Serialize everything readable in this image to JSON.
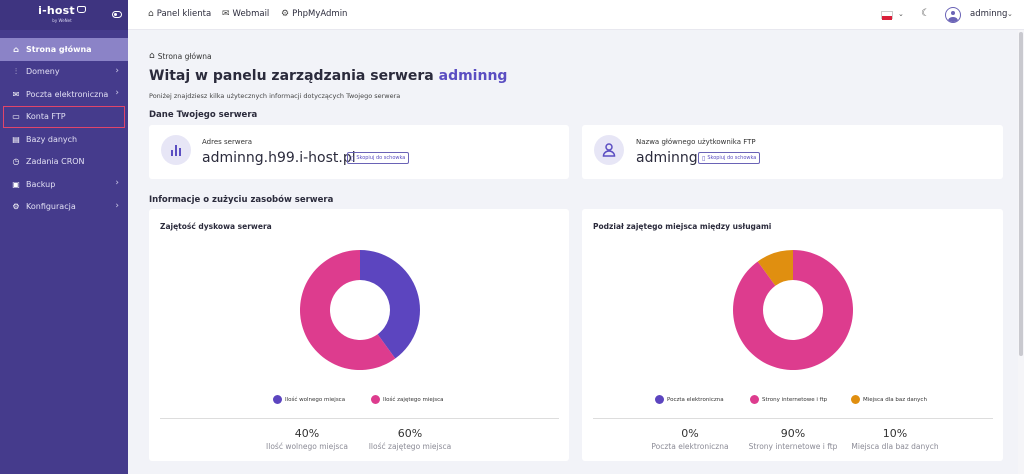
{
  "brand": {
    "name": "i-host",
    "tagline": "by WeNet"
  },
  "sidebar": {
    "items": [
      {
        "label": "Strona główna",
        "icon": "home-icon"
      },
      {
        "label": "Domeny",
        "icon": "chart-icon"
      },
      {
        "label": "Poczta elektroniczna",
        "icon": "mail-icon"
      },
      {
        "label": "Konta FTP",
        "icon": "ftp-icon"
      },
      {
        "label": "Bazy danych",
        "icon": "database-icon"
      },
      {
        "label": "Zadania CRON",
        "icon": "clock-icon"
      },
      {
        "label": "Backup",
        "icon": "backup-icon"
      },
      {
        "label": "Konfiguracja",
        "icon": "gear-icon"
      }
    ]
  },
  "topbar": {
    "links": [
      {
        "label": "Panel klienta",
        "icon": "home-icon"
      },
      {
        "label": "Webmail",
        "icon": "mail-icon"
      },
      {
        "label": "PhpMyAdmin",
        "icon": "gear-icon"
      }
    ],
    "language": "PL",
    "user": "adminng"
  },
  "main": {
    "breadcrumb": "Strona główna",
    "title_prefix": "Witaj w panelu zarządzania serwera",
    "title_user": "adminng",
    "subtitle": "Poniżej znajdziesz kilka użytecznych informacji dotyczących Twojego serwera",
    "server_section": "Dane Twojego serwera",
    "server_address_label": "Adres serwera",
    "server_address": "adminng.h99.i-host.pl",
    "ftp_user_label": "Nazwa głównego użytkownika FTP",
    "ftp_user": "adminng",
    "copy_label": "Skopiuj do schowka",
    "usage_section": "Informacje o zużyciu zasobów serwera"
  },
  "chart_data": [
    {
      "type": "pie",
      "title": "Zajętość dyskowa serwera",
      "categories": [
        "Ilość wolnego miejsca",
        "Ilość zajętego miejsca"
      ],
      "values": [
        40,
        60
      ],
      "labels": [
        "40%",
        "60%"
      ],
      "colors": [
        "#5c45bf",
        "#dd3c8e"
      ]
    },
    {
      "type": "pie",
      "title": "Podział zajętego miejsca między usługami",
      "categories": [
        "Poczta elektroniczna",
        "Strony internetowe i ftp",
        "Miejsca dla baz danych"
      ],
      "values": [
        0,
        90,
        10
      ],
      "labels": [
        "0%",
        "90%",
        "10%"
      ],
      "colors": [
        "#5c45bf",
        "#dd3c8e",
        "#e08f10"
      ]
    }
  ]
}
